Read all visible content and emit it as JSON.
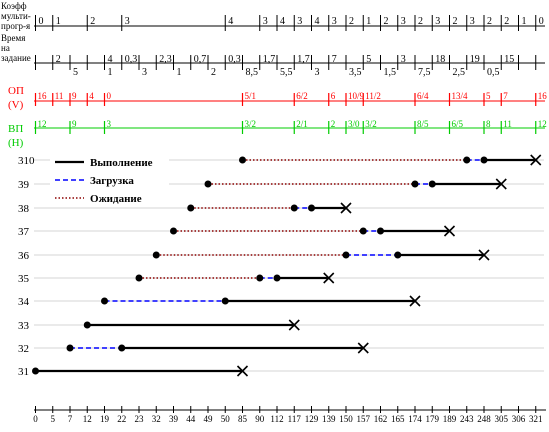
{
  "header": {
    "coef_label": [
      "Коэфф",
      "мульти-",
      "прогр-я"
    ],
    "time_label": [
      "Время",
      "на",
      "задание"
    ],
    "op_label": [
      "ОП",
      "(V)"
    ],
    "vp_label": [
      "ВП",
      "(Н)"
    ]
  },
  "chart_data": {
    "type": "gantt",
    "x_ticks": [
      "0",
      "5",
      "7",
      "12",
      "19",
      "22",
      "23",
      "32",
      "39",
      "44",
      "49",
      "50",
      "85",
      "90",
      "112",
      "117",
      "129",
      "139",
      "150",
      "157",
      "162",
      "165",
      "174",
      "179",
      "189",
      "243",
      "248",
      "305",
      "306",
      "321"
    ],
    "legend": {
      "placement": "top-left",
      "entries": [
        {
          "key": "exec",
          "label": "Выполнение",
          "color": "#000000",
          "dash": "solid"
        },
        {
          "key": "load",
          "label": "Загрузка",
          "color": "#0000ff",
          "dash": "dash"
        },
        {
          "key": "wait",
          "label": "Ожидание",
          "color": "#8b0000",
          "dash": "dot"
        }
      ]
    },
    "tasks": [
      {
        "id": "31",
        "segments": [
          {
            "kind": "exec",
            "from": 0,
            "to": 12
          }
        ]
      },
      {
        "id": "32",
        "segments": [
          {
            "kind": "load",
            "from": 2,
            "to": 5
          },
          {
            "kind": "exec",
            "from": 5,
            "to": 19
          }
        ]
      },
      {
        "id": "33",
        "segments": [
          {
            "kind": "exec",
            "from": 3,
            "to": 15
          }
        ]
      },
      {
        "id": "34",
        "segments": [
          {
            "kind": "load",
            "from": 4,
            "to": 11
          },
          {
            "kind": "exec",
            "from": 11,
            "to": 22
          }
        ]
      },
      {
        "id": "35",
        "segments": [
          {
            "kind": "wait",
            "from": 6,
            "to": 13
          },
          {
            "kind": "load",
            "from": 13,
            "to": 14
          },
          {
            "kind": "exec",
            "from": 14,
            "to": 17
          }
        ]
      },
      {
        "id": "36",
        "segments": [
          {
            "kind": "wait",
            "from": 7,
            "to": 18
          },
          {
            "kind": "load",
            "from": 18,
            "to": 21
          },
          {
            "kind": "exec",
            "from": 21,
            "to": 26
          }
        ]
      },
      {
        "id": "37",
        "segments": [
          {
            "kind": "wait",
            "from": 8,
            "to": 19
          },
          {
            "kind": "load",
            "from": 19,
            "to": 20
          },
          {
            "kind": "exec",
            "from": 20,
            "to": 24
          }
        ]
      },
      {
        "id": "38",
        "segments": [
          {
            "kind": "wait",
            "from": 9,
            "to": 15
          },
          {
            "kind": "load",
            "from": 15,
            "to": 16
          },
          {
            "kind": "exec",
            "from": 16,
            "to": 18
          }
        ]
      },
      {
        "id": "39",
        "segments": [
          {
            "kind": "wait",
            "from": 10,
            "to": 22
          },
          {
            "kind": "load",
            "from": 22,
            "to": 23
          },
          {
            "kind": "exec",
            "from": 23,
            "to": 27
          }
        ]
      },
      {
        "id": "310",
        "segments": [
          {
            "kind": "wait",
            "from": 12,
            "to": 25
          },
          {
            "kind": "load",
            "from": 25,
            "to": 26
          },
          {
            "kind": "exec",
            "from": 26,
            "to": 29
          }
        ]
      }
    ],
    "coef_row": [
      {
        "x": 0,
        "v": "0"
      },
      {
        "x": 1,
        "v": "1"
      },
      {
        "x": 3,
        "v": "2"
      },
      {
        "x": 5,
        "v": "3"
      },
      {
        "x": 11,
        "v": "4"
      },
      {
        "x": 13,
        "v": "3"
      },
      {
        "x": 14,
        "v": "4"
      },
      {
        "x": 15,
        "v": "3"
      },
      {
        "x": 16,
        "v": "4"
      },
      {
        "x": 17,
        "v": "3"
      },
      {
        "x": 18,
        "v": "2"
      },
      {
        "x": 19,
        "v": "1"
      },
      {
        "x": 20,
        "v": "2"
      },
      {
        "x": 21,
        "v": "3"
      },
      {
        "x": 22,
        "v": "2"
      },
      {
        "x": 23,
        "v": "3"
      },
      {
        "x": 24,
        "v": "2"
      },
      {
        "x": 25,
        "v": "3"
      },
      {
        "x": 26,
        "v": "2"
      },
      {
        "x": 27,
        "v": "2"
      },
      {
        "x": 28,
        "v": "1"
      },
      {
        "x": 29,
        "v": "0"
      }
    ],
    "time_row_upper": [
      {
        "x": 1,
        "v": "2"
      },
      {
        "x": 4,
        "v": "4"
      },
      {
        "x": 5,
        "v": "0,3"
      },
      {
        "x": 7,
        "v": "2,3"
      },
      {
        "x": 9,
        "v": "0,7"
      },
      {
        "x": 11,
        "v": "0,3"
      },
      {
        "x": 13,
        "v": "1,7"
      },
      {
        "x": 15,
        "v": "1,7"
      },
      {
        "x": 17,
        "v": "7"
      },
      {
        "x": 19,
        "v": "5"
      },
      {
        "x": 21,
        "v": "3"
      },
      {
        "x": 23,
        "v": "18"
      },
      {
        "x": 25,
        "v": "19"
      },
      {
        "x": 27,
        "v": "15"
      }
    ],
    "time_row_lower": [
      {
        "x": 2,
        "v": "5"
      },
      {
        "x": 4,
        "v": "1"
      },
      {
        "x": 6,
        "v": "3"
      },
      {
        "x": 8,
        "v": "1"
      },
      {
        "x": 10,
        "v": "2"
      },
      {
        "x": 12,
        "v": "8,5"
      },
      {
        "x": 14,
        "v": "5,5"
      },
      {
        "x": 16,
        "v": "3"
      },
      {
        "x": 18,
        "v": "3,5"
      },
      {
        "x": 20,
        "v": "1,5"
      },
      {
        "x": 22,
        "v": "7,5"
      },
      {
        "x": 24,
        "v": "2,5"
      },
      {
        "x": 26,
        "v": "0,5"
      }
    ],
    "op_row": [
      {
        "x": 0,
        "v": "16"
      },
      {
        "x": 1,
        "v": "11"
      },
      {
        "x": 2,
        "v": "9"
      },
      {
        "x": 3,
        "v": "4"
      },
      {
        "x": 4,
        "v": "0"
      },
      {
        "x": 12,
        "v": "5/1"
      },
      {
        "x": 15,
        "v": "6/2"
      },
      {
        "x": 17,
        "v": "6"
      },
      {
        "x": 18,
        "v": "10/9"
      },
      {
        "x": 19,
        "v": "11/2"
      },
      {
        "x": 22,
        "v": "6/4"
      },
      {
        "x": 24,
        "v": "13/4"
      },
      {
        "x": 26,
        "v": "5"
      },
      {
        "x": 27,
        "v": "7"
      },
      {
        "x": 29,
        "v": "16"
      }
    ],
    "vp_row": [
      {
        "x": 0,
        "v": "12"
      },
      {
        "x": 2,
        "v": "9"
      },
      {
        "x": 4,
        "v": "3"
      },
      {
        "x": 12,
        "v": "3/2"
      },
      {
        "x": 15,
        "v": "2/1"
      },
      {
        "x": 17,
        "v": "2"
      },
      {
        "x": 18,
        "v": "3/0"
      },
      {
        "x": 19,
        "v": "3/2"
      },
      {
        "x": 22,
        "v": "8/5"
      },
      {
        "x": 24,
        "v": "6/5"
      },
      {
        "x": 26,
        "v": "8"
      },
      {
        "x": 27,
        "v": "11"
      },
      {
        "x": 29,
        "v": "12"
      }
    ],
    "colors": {
      "op": "#ff0000",
      "vp": "#00cc00",
      "exec": "#000000",
      "load": "#0000ff",
      "wait": "#8b0000"
    }
  }
}
